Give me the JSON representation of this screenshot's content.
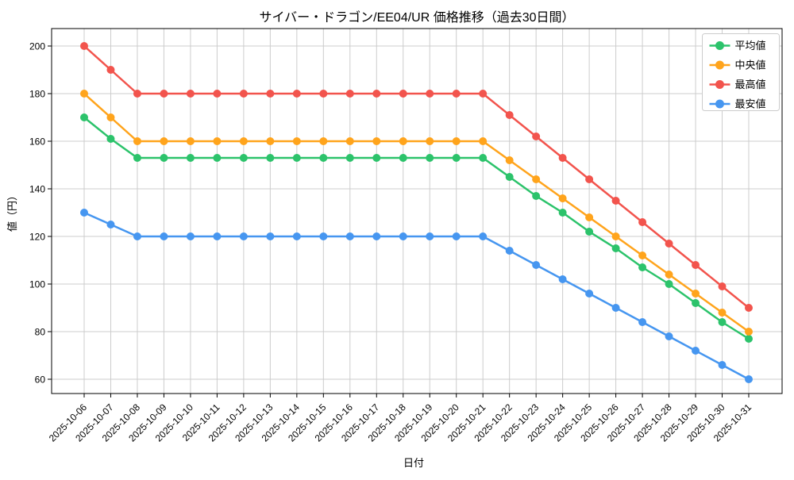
{
  "chart_data": {
    "type": "line",
    "title": "サイバー・ドラゴン/EE04/UR 価格推移（過去30日間）",
    "xlabel": "日付",
    "ylabel": "値（円）",
    "x": [
      "2025-10-06",
      "2025-10-07",
      "2025-10-08",
      "2025-10-09",
      "2025-10-10",
      "2025-10-11",
      "2025-10-12",
      "2025-10-13",
      "2025-10-14",
      "2025-10-15",
      "2025-10-16",
      "2025-10-17",
      "2025-10-18",
      "2025-10-19",
      "2025-10-20",
      "2025-10-21",
      "2025-10-22",
      "2025-10-23",
      "2025-10-24",
      "2025-10-25",
      "2025-10-26",
      "2025-10-27",
      "2025-10-28",
      "2025-10-29",
      "2025-10-30",
      "2025-10-31"
    ],
    "series": [
      {
        "name": "平均値",
        "color": "#2cc36b",
        "values": [
          170,
          161,
          153,
          153,
          153,
          153,
          153,
          153,
          153,
          153,
          153,
          153,
          153,
          153,
          153,
          153,
          145,
          137,
          130,
          122,
          115,
          107,
          100,
          92,
          84,
          77
        ]
      },
      {
        "name": "中央値",
        "color": "#ffa41c",
        "values": [
          180,
          170,
          160,
          160,
          160,
          160,
          160,
          160,
          160,
          160,
          160,
          160,
          160,
          160,
          160,
          160,
          152,
          144,
          136,
          128,
          120,
          112,
          104,
          96,
          88,
          80
        ]
      },
      {
        "name": "最高値",
        "color": "#f2544d",
        "values": [
          200,
          190,
          180,
          180,
          180,
          180,
          180,
          180,
          180,
          180,
          180,
          180,
          180,
          180,
          180,
          180,
          171,
          162,
          153,
          144,
          135,
          126,
          117,
          108,
          99,
          90
        ]
      },
      {
        "name": "最安値",
        "color": "#4696f0",
        "values": [
          130,
          125,
          120,
          120,
          120,
          120,
          120,
          120,
          120,
          120,
          120,
          120,
          120,
          120,
          120,
          120,
          114,
          108,
          102,
          96,
          90,
          84,
          78,
          72,
          66,
          60
        ]
      }
    ],
    "yticks": [
      60,
      80,
      100,
      120,
      140,
      160,
      180,
      200
    ],
    "ylim": [
      54,
      208
    ],
    "grid": true,
    "legend_position": "upper right",
    "grid_color": "#cccccc",
    "background_color": "#ffffff"
  }
}
